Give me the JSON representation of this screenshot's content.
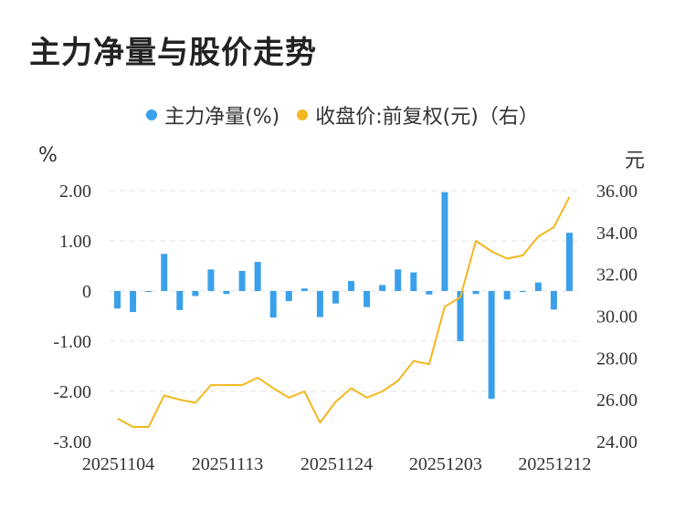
{
  "title": "主力净量与股价走势",
  "legend": [
    {
      "label": "主力净量(%)",
      "color": "#3aa0eb"
    },
    {
      "label": "收盘价:前复权(元)（右）",
      "color": "#f3b71f"
    }
  ],
  "chart_data": {
    "type": "bar+line",
    "title": "主力净量与股价走势",
    "left_axis": {
      "unit": "%",
      "min": -3,
      "max": 2,
      "ticks": [
        "2.00",
        "1.00",
        "0",
        "-1.00",
        "-2.00",
        "-3.00"
      ],
      "tick_values": [
        2,
        1,
        0,
        -1,
        -2,
        -3
      ]
    },
    "right_axis": {
      "unit": "元",
      "min": 24,
      "max": 36,
      "ticks": [
        "36.00",
        "34.00",
        "32.00",
        "30.00",
        "28.00",
        "26.00",
        "24.00"
      ],
      "tick_values": [
        36,
        34,
        32,
        30,
        28,
        26,
        24
      ]
    },
    "x_labels": [
      {
        "index": 0,
        "label": "20251104"
      },
      {
        "index": 7,
        "label": "20251113"
      },
      {
        "index": 14,
        "label": "20251124"
      },
      {
        "index": 21,
        "label": "20251203"
      },
      {
        "index": 28,
        "label": "20251212"
      }
    ],
    "grid": true,
    "series": [
      {
        "name": "主力净量(%)",
        "type": "bar",
        "axis": "left",
        "color": "#3aa0eb",
        "values": [
          -0.35,
          -0.42,
          -0.02,
          0.74,
          -0.38,
          -0.1,
          0.43,
          -0.06,
          0.4,
          0.58,
          -0.53,
          -0.2,
          0.05,
          -0.52,
          -0.25,
          0.2,
          -0.32,
          0.12,
          0.43,
          0.37,
          -0.07,
          1.97,
          -1.0,
          -0.06,
          -2.15,
          -0.17,
          -0.02,
          0.17,
          -0.37,
          1.16
        ]
      },
      {
        "name": "收盘价:前复权(元)（右）",
        "type": "line",
        "axis": "right",
        "color": "#f3b71f",
        "values": [
          25.1,
          24.7,
          24.7,
          26.2,
          26.0,
          25.85,
          26.7,
          26.7,
          26.7,
          27.05,
          26.55,
          26.1,
          26.4,
          24.9,
          25.9,
          26.55,
          26.1,
          26.4,
          26.9,
          27.85,
          27.7,
          30.45,
          30.9,
          33.6,
          33.1,
          32.75,
          32.9,
          33.8,
          34.25,
          35.7
        ]
      }
    ]
  }
}
